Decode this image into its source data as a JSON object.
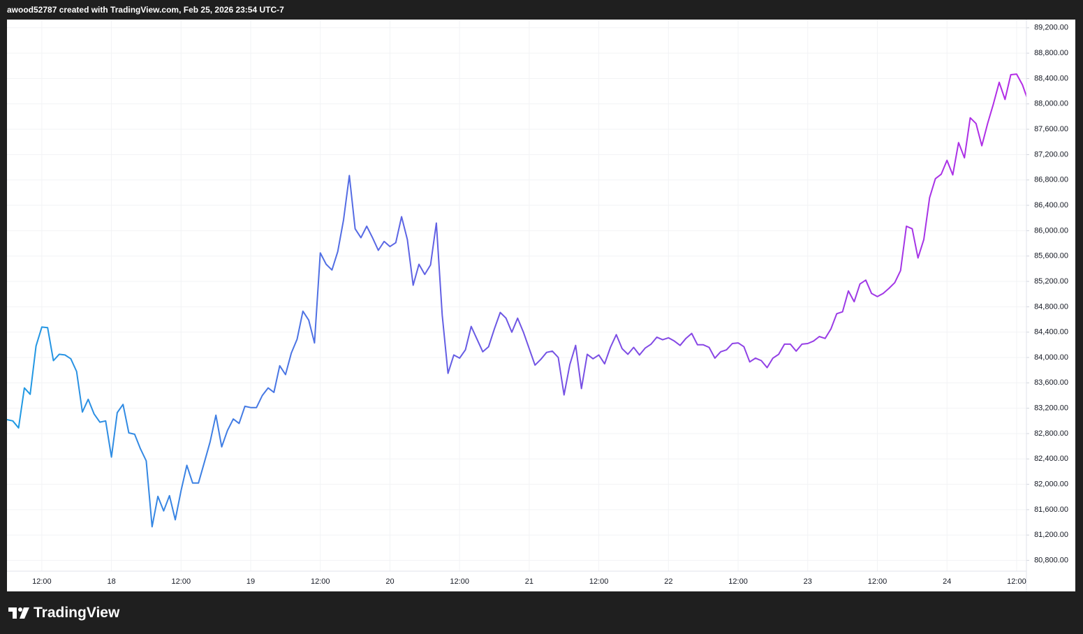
{
  "header": {
    "text": "awood52787 created with TradingView.com, Feb 25, 2026 23:54 UTC-7"
  },
  "footer": {
    "brand": "TradingView"
  },
  "chart_data": {
    "type": "line",
    "categories": [
      null,
      null,
      null,
      null,
      null,
      null,
      "12:00",
      null,
      null,
      null,
      null,
      null,
      null,
      null,
      null,
      null,
      null,
      null,
      "18",
      null,
      null,
      null,
      null,
      null,
      null,
      null,
      null,
      null,
      null,
      null,
      "12:00",
      null,
      null,
      null,
      null,
      null,
      null,
      null,
      null,
      null,
      null,
      null,
      "19",
      null,
      null,
      null,
      null,
      null,
      null,
      null,
      null,
      null,
      null,
      null,
      "12:00",
      null,
      null,
      null,
      null,
      null,
      null,
      null,
      null,
      null,
      null,
      null,
      "20",
      null,
      null,
      null,
      null,
      null,
      null,
      null,
      null,
      null,
      null,
      null,
      "12:00",
      null,
      null,
      null,
      null,
      null,
      null,
      null,
      null,
      null,
      null,
      null,
      "21",
      null,
      null,
      null,
      null,
      null,
      null,
      null,
      null,
      null,
      null,
      null,
      "12:00",
      null,
      null,
      null,
      null,
      null,
      null,
      null,
      null,
      null,
      null,
      null,
      "22",
      null,
      null,
      null,
      null,
      null,
      null,
      null,
      null,
      null,
      null,
      null,
      "12:00",
      null,
      null,
      null,
      null,
      null,
      null,
      null,
      null,
      null,
      null,
      null,
      "23",
      null,
      null,
      null,
      null,
      null,
      null,
      null,
      null,
      null,
      null,
      null,
      "12:00",
      null,
      null,
      null,
      null,
      null,
      null,
      null,
      null,
      null,
      null,
      null,
      "24",
      null,
      null,
      null,
      null,
      null,
      null,
      null,
      null,
      null,
      null,
      null,
      "12:00",
      null,
      null
    ],
    "series": [
      {
        "colors": [
          "#1e9be3",
          "#6f55e4",
          "#b52be6"
        ],
        "values": [
          83020,
          83000,
          82890,
          83520,
          83420,
          84180,
          84480,
          84470,
          83950,
          84050,
          84040,
          83980,
          83780,
          83140,
          83340,
          83110,
          82980,
          83000,
          82430,
          83130,
          83260,
          82810,
          82790,
          82560,
          82370,
          81330,
          81810,
          81580,
          81820,
          81440,
          81900,
          82300,
          82020,
          82020,
          82340,
          82670,
          83090,
          82590,
          82850,
          83030,
          82960,
          83230,
          83210,
          83210,
          83400,
          83520,
          83450,
          83870,
          83730,
          84070,
          84290,
          84730,
          84590,
          84230,
          85650,
          85470,
          85380,
          85670,
          86170,
          86870,
          86030,
          85890,
          86070,
          85890,
          85690,
          85830,
          85750,
          85810,
          86220,
          85860,
          85140,
          85470,
          85310,
          85460,
          86120,
          84670,
          83750,
          84040,
          83990,
          84120,
          84490,
          84290,
          84090,
          84170,
          84450,
          84710,
          84620,
          84400,
          84620,
          84400,
          84140,
          83880,
          83970,
          84080,
          84100,
          84000,
          83410,
          83890,
          84190,
          83510,
          84050,
          83980,
          84040,
          83900,
          84160,
          84360,
          84140,
          84050,
          84160,
          84040,
          84150,
          84210,
          84320,
          84280,
          84310,
          84260,
          84190,
          84300,
          84380,
          84200,
          84200,
          84160,
          83990,
          84090,
          84120,
          84220,
          84230,
          84170,
          83930,
          83990,
          83950,
          83840,
          83990,
          84050,
          84210,
          84210,
          84100,
          84210,
          84220,
          84260,
          84330,
          84300,
          84450,
          84690,
          84720,
          85050,
          84880,
          85160,
          85220,
          85010,
          84960,
          85010,
          85090,
          85180,
          85370,
          86070,
          86030,
          85570,
          85860,
          86520,
          86820,
          86890,
          87110,
          86880,
          87390,
          87150,
          87780,
          87690,
          87340,
          87690,
          88000,
          88340,
          88070,
          88460,
          88470,
          88300,
          88040
        ]
      }
    ],
    "ylim": [
      80630,
      89330
    ],
    "yticks": [
      {
        "value": 80800,
        "label": "80,800.00"
      },
      {
        "value": 81200,
        "label": "81,200.00"
      },
      {
        "value": 81600,
        "label": "81,600.00"
      },
      {
        "value": 82000,
        "label": "82,000.00"
      },
      {
        "value": 82400,
        "label": "82,400.00"
      },
      {
        "value": 82800,
        "label": "82,800.00"
      },
      {
        "value": 83200,
        "label": "83,200.00"
      },
      {
        "value": 83600,
        "label": "83,600.00"
      },
      {
        "value": 84000,
        "label": "84,000.00"
      },
      {
        "value": 84400,
        "label": "84,400.00"
      },
      {
        "value": 84800,
        "label": "84,800.00"
      },
      {
        "value": 85200,
        "label": "85,200.00"
      },
      {
        "value": 85600,
        "label": "85,600.00"
      },
      {
        "value": 86000,
        "label": "86,000.00"
      },
      {
        "value": 86400,
        "label": "86,400.00"
      },
      {
        "value": 86800,
        "label": "86,800.00"
      },
      {
        "value": 87200,
        "label": "87,200.00"
      },
      {
        "value": 87600,
        "label": "87,600.00"
      },
      {
        "value": 88000,
        "label": "88,000.00"
      },
      {
        "value": 88400,
        "label": "88,400.00"
      },
      {
        "value": 88800,
        "label": "88,800.00"
      },
      {
        "value": 89200,
        "label": "89,200.00"
      }
    ],
    "grid": true
  }
}
